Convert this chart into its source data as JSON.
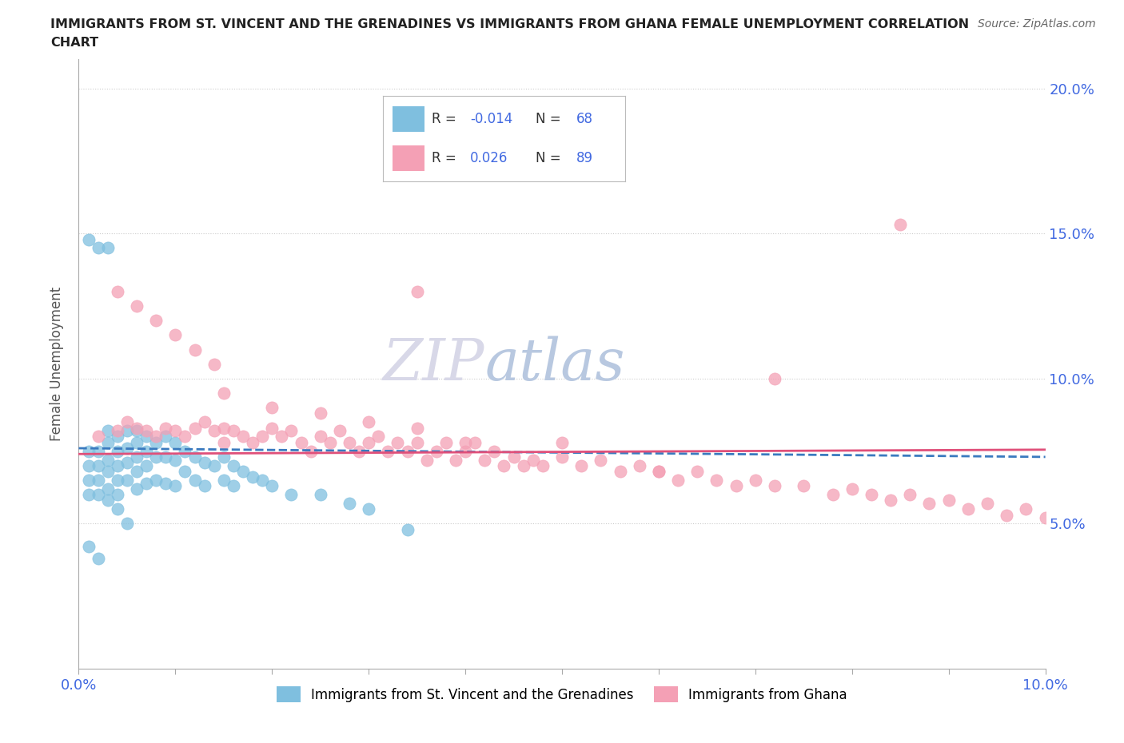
{
  "title_line1": "IMMIGRANTS FROM ST. VINCENT AND THE GRENADINES VS IMMIGRANTS FROM GHANA FEMALE UNEMPLOYMENT CORRELATION",
  "title_line2": "CHART",
  "source": "Source: ZipAtlas.com",
  "ylabel": "Female Unemployment",
  "xlim": [
    0.0,
    0.1
  ],
  "ylim": [
    0.0,
    0.21
  ],
  "ytick_vals": [
    0.0,
    0.05,
    0.1,
    0.15,
    0.2
  ],
  "ytick_labels": [
    "",
    "5.0%",
    "10.0%",
    "15.0%",
    "20.0%"
  ],
  "xtick_positions": [
    0.0,
    0.01,
    0.02,
    0.03,
    0.04,
    0.05,
    0.06,
    0.07,
    0.08,
    0.09,
    0.1
  ],
  "xtick_labels": [
    "0.0%",
    "",
    "",
    "",
    "",
    "",
    "",
    "",
    "",
    "",
    "10.0%"
  ],
  "blue_color": "#7fbfdf",
  "pink_color": "#f4a0b5",
  "trend_blue_color": "#3a7abf",
  "trend_pink_color": "#e0507a",
  "watermark_color": "#ddddee",
  "legend_box_color": "#f0f0f0",
  "blue_scatter_x": [
    0.001,
    0.001,
    0.001,
    0.001,
    0.002,
    0.002,
    0.002,
    0.002,
    0.003,
    0.003,
    0.003,
    0.003,
    0.003,
    0.003,
    0.004,
    0.004,
    0.004,
    0.004,
    0.004,
    0.005,
    0.005,
    0.005,
    0.005,
    0.006,
    0.006,
    0.006,
    0.006,
    0.006,
    0.007,
    0.007,
    0.007,
    0.007,
    0.008,
    0.008,
    0.008,
    0.009,
    0.009,
    0.009,
    0.01,
    0.01,
    0.01,
    0.011,
    0.011,
    0.012,
    0.012,
    0.013,
    0.013,
    0.014,
    0.015,
    0.015,
    0.016,
    0.016,
    0.017,
    0.018,
    0.019,
    0.02,
    0.022,
    0.025,
    0.028,
    0.03,
    0.034,
    0.003,
    0.002,
    0.001,
    0.004,
    0.005,
    0.001,
    0.002
  ],
  "blue_scatter_y": [
    0.075,
    0.07,
    0.065,
    0.06,
    0.075,
    0.07,
    0.065,
    0.06,
    0.082,
    0.078,
    0.072,
    0.068,
    0.062,
    0.058,
    0.08,
    0.075,
    0.07,
    0.065,
    0.06,
    0.082,
    0.076,
    0.071,
    0.065,
    0.082,
    0.078,
    0.073,
    0.068,
    0.062,
    0.08,
    0.075,
    0.07,
    0.064,
    0.078,
    0.073,
    0.065,
    0.08,
    0.073,
    0.064,
    0.078,
    0.072,
    0.063,
    0.075,
    0.068,
    0.073,
    0.065,
    0.071,
    0.063,
    0.07,
    0.073,
    0.065,
    0.07,
    0.063,
    0.068,
    0.066,
    0.065,
    0.063,
    0.06,
    0.06,
    0.057,
    0.055,
    0.048,
    0.145,
    0.145,
    0.148,
    0.055,
    0.05,
    0.042,
    0.038
  ],
  "pink_scatter_x": [
    0.002,
    0.004,
    0.005,
    0.006,
    0.007,
    0.008,
    0.009,
    0.01,
    0.011,
    0.012,
    0.013,
    0.014,
    0.015,
    0.015,
    0.016,
    0.017,
    0.018,
    0.019,
    0.02,
    0.021,
    0.022,
    0.023,
    0.024,
    0.025,
    0.026,
    0.027,
    0.028,
    0.029,
    0.03,
    0.031,
    0.032,
    0.033,
    0.034,
    0.035,
    0.036,
    0.037,
    0.038,
    0.039,
    0.04,
    0.041,
    0.042,
    0.043,
    0.044,
    0.045,
    0.046,
    0.047,
    0.048,
    0.05,
    0.052,
    0.054,
    0.056,
    0.058,
    0.06,
    0.062,
    0.064,
    0.066,
    0.068,
    0.07,
    0.072,
    0.075,
    0.078,
    0.08,
    0.082,
    0.084,
    0.086,
    0.088,
    0.09,
    0.092,
    0.094,
    0.096,
    0.098,
    0.1,
    0.015,
    0.02,
    0.025,
    0.03,
    0.035,
    0.04,
    0.05,
    0.06,
    0.004,
    0.006,
    0.008,
    0.01,
    0.012,
    0.014,
    0.035,
    0.085,
    0.072
  ],
  "pink_scatter_y": [
    0.08,
    0.082,
    0.085,
    0.083,
    0.082,
    0.08,
    0.083,
    0.082,
    0.08,
    0.083,
    0.085,
    0.082,
    0.083,
    0.078,
    0.082,
    0.08,
    0.078,
    0.08,
    0.083,
    0.08,
    0.082,
    0.078,
    0.075,
    0.08,
    0.078,
    0.082,
    0.078,
    0.075,
    0.078,
    0.08,
    0.075,
    0.078,
    0.075,
    0.078,
    0.072,
    0.075,
    0.078,
    0.072,
    0.075,
    0.078,
    0.072,
    0.075,
    0.07,
    0.073,
    0.07,
    0.072,
    0.07,
    0.073,
    0.07,
    0.072,
    0.068,
    0.07,
    0.068,
    0.065,
    0.068,
    0.065,
    0.063,
    0.065,
    0.063,
    0.063,
    0.06,
    0.062,
    0.06,
    0.058,
    0.06,
    0.057,
    0.058,
    0.055,
    0.057,
    0.053,
    0.055,
    0.052,
    0.095,
    0.09,
    0.088,
    0.085,
    0.083,
    0.078,
    0.078,
    0.068,
    0.13,
    0.125,
    0.12,
    0.115,
    0.11,
    0.105,
    0.13,
    0.153,
    0.1
  ]
}
